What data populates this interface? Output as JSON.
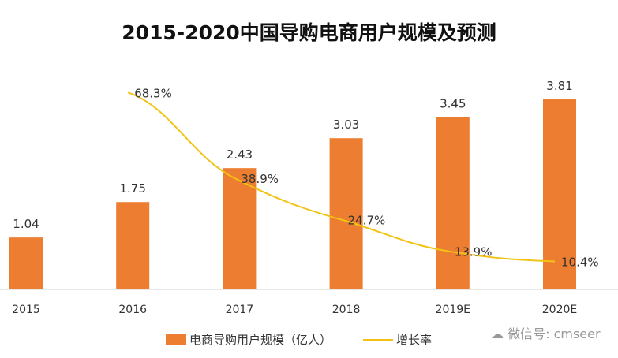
{
  "chart_data": {
    "type": "bar+line",
    "title": "2015-2020中国导购电商用户规模及预测",
    "categories": [
      "2015",
      "2016",
      "2017",
      "2018",
      "2019E",
      "2020E"
    ],
    "series": [
      {
        "name": "电商导购用户规模（亿人）",
        "type": "bar",
        "color": "#ED7D31",
        "values": [
          1.04,
          1.75,
          2.43,
          3.03,
          3.45,
          3.81
        ],
        "labels": [
          "1.04",
          "1.75",
          "2.43",
          "3.03",
          "3.45",
          "3.81"
        ]
      },
      {
        "name": "增长率",
        "type": "line",
        "color": "#F2C314",
        "values": [
          null,
          68.3,
          38.9,
          24.7,
          13.9,
          10.4
        ],
        "labels": [
          "",
          "68.3%",
          "38.9%",
          "24.7%",
          "13.9%",
          "10.4%"
        ]
      }
    ],
    "grid": false,
    "legend": "bottom"
  },
  "watermark": "微信号: cmseer"
}
